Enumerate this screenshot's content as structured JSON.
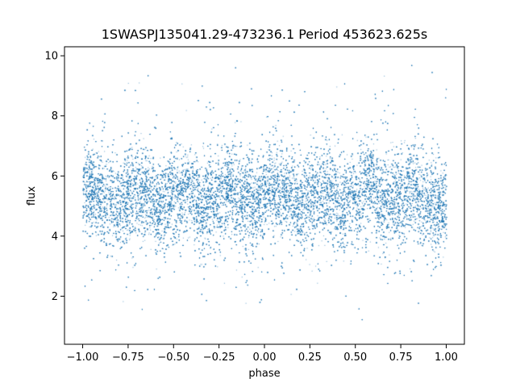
{
  "chart_data": {
    "type": "scatter",
    "title": "1SWASPJ135041.29-473236.1 Period 453623.625s",
    "xlabel": "phase",
    "ylabel": "flux",
    "xlim": [
      -1.1,
      1.1
    ],
    "ylim": [
      0.4,
      10.3
    ],
    "xticks": [
      -1.0,
      -0.75,
      -0.5,
      -0.25,
      0.0,
      0.25,
      0.5,
      0.75,
      1.0
    ],
    "xtick_labels": [
      "−1.00",
      "−0.75",
      "−0.50",
      "−0.25",
      "0.00",
      "0.25",
      "0.50",
      "0.75",
      "1.00"
    ],
    "yticks": [
      2,
      4,
      6,
      8,
      10
    ],
    "ytick_labels": [
      "2",
      "4",
      "6",
      "8",
      "10"
    ],
    "grid": false,
    "marker_color": "#1f77b4",
    "series": [
      {
        "name": "",
        "x_range": [
          -1.0,
          1.0
        ],
        "y_center": 5.3,
        "y_core_band": [
          4.0,
          6.6
        ],
        "y_extent": [
          0.8,
          9.7
        ],
        "point_count": 30000,
        "note_visible": "dense symmetric noise band"
      }
    ]
  }
}
